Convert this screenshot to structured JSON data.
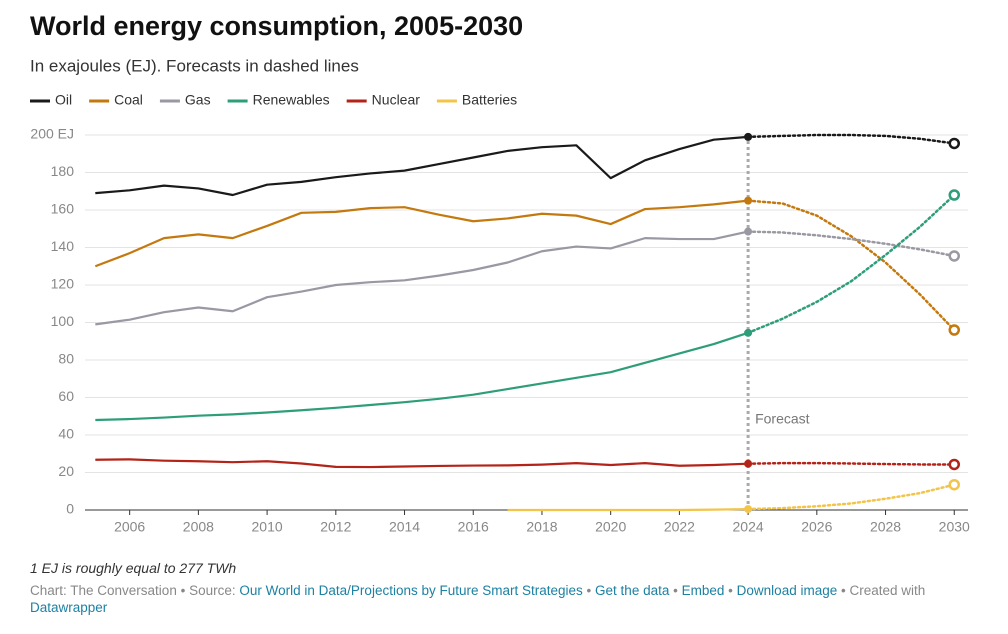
{
  "chart_data": {
    "type": "line",
    "title": "World energy consumption, 2005-2030",
    "subtitle": "In exajoules (EJ). Forecasts in dashed lines",
    "x": [
      2005,
      2006,
      2007,
      2008,
      2009,
      2010,
      2011,
      2012,
      2013,
      2014,
      2015,
      2016,
      2017,
      2018,
      2019,
      2020,
      2021,
      2022,
      2023,
      2024,
      2025,
      2026,
      2027,
      2028,
      2029,
      2030
    ],
    "xlim": [
      2004.7,
      2030.4
    ],
    "xticks": [
      2006,
      2008,
      2010,
      2012,
      2014,
      2016,
      2018,
      2020,
      2022,
      2024,
      2026,
      2028,
      2030
    ],
    "ylim": [
      0,
      200
    ],
    "yticks": [
      0,
      20,
      40,
      60,
      80,
      100,
      120,
      140,
      160,
      180,
      {
        "value": 200,
        "label": "200 EJ"
      }
    ],
    "grid": true,
    "forecast_x": 2024,
    "forecast_label": "Forecast",
    "series": [
      {
        "name": "Oil",
        "color": "#1a1a1a",
        "values": [
          169,
          170.5,
          173,
          171.5,
          168,
          173.5,
          175,
          177.5,
          179.5,
          181,
          184.5,
          188,
          191.5,
          193.5,
          194.5,
          177,
          186.5,
          192.5,
          197.5,
          199,
          199.5,
          200,
          200,
          199.5,
          198,
          195.5
        ]
      },
      {
        "name": "Coal",
        "color": "#c4790f",
        "values": [
          130,
          137,
          145,
          147,
          145,
          151.5,
          158.5,
          159,
          161,
          161.5,
          157.5,
          154,
          155.5,
          158,
          157,
          152.5,
          160.5,
          161.5,
          163,
          165,
          163.5,
          157,
          146,
          132,
          115,
          96
        ]
      },
      {
        "name": "Gas",
        "color": "#9a98a2",
        "values": [
          99,
          101.5,
          105.5,
          108,
          106,
          113.5,
          116.5,
          120,
          121.5,
          122.5,
          125,
          128,
          132,
          138,
          140.5,
          139.5,
          145,
          144.5,
          144.5,
          148.5,
          148,
          146.5,
          144.5,
          142,
          139,
          135.5
        ]
      },
      {
        "name": "Renewables",
        "color": "#2e9e7a",
        "values": [
          48,
          48.5,
          49.3,
          50.3,
          51,
          52,
          53.2,
          54.5,
          56,
          57.5,
          59.3,
          61.5,
          64.5,
          67.5,
          70.5,
          73.5,
          78.5,
          83.5,
          88.5,
          94.5,
          102,
          111,
          122,
          136,
          151,
          168
        ]
      },
      {
        "name": "Nuclear",
        "color": "#b42318",
        "values": [
          26.8,
          27,
          26.3,
          26,
          25.5,
          26,
          24.8,
          23,
          22.9,
          23.2,
          23.5,
          23.7,
          23.8,
          24.2,
          25,
          24,
          25,
          23.6,
          24,
          24.7,
          25,
          25,
          24.8,
          24.5,
          24.3,
          24.3
        ]
      },
      {
        "name": "Batteries",
        "color": "#f3c44a",
        "values": [
          null,
          null,
          null,
          null,
          null,
          null,
          null,
          null,
          null,
          null,
          null,
          null,
          0,
          0,
          0,
          0,
          0,
          0,
          0.2,
          0.5,
          1,
          2,
          3.5,
          6,
          9,
          13.5
        ]
      }
    ]
  },
  "footer": {
    "note": "1 EJ is roughly equal to 277 TWh",
    "credit": "Chart: The Conversation",
    "source_label": "Source:",
    "separator": "•",
    "links": [
      "Our World in Data/Projections by Future Smart Strategies",
      "Get the data",
      "Embed",
      "Download image"
    ],
    "created_with": "Created with",
    "tool": "Datawrapper"
  }
}
